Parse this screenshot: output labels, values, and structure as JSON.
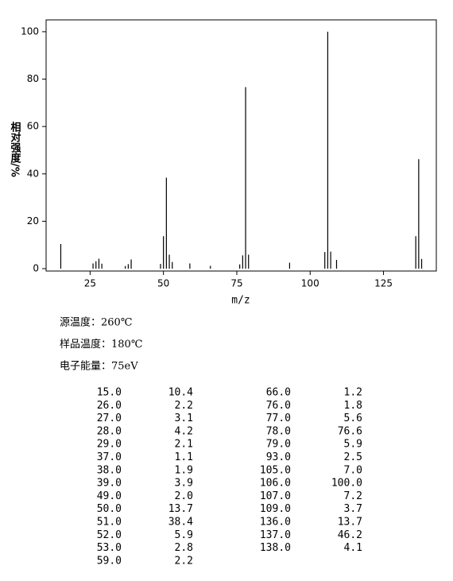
{
  "chart_data": {
    "type": "bar",
    "x_label": "m/z",
    "y_label": "相对强度/%",
    "x": [
      15,
      26,
      27,
      28,
      29,
      37,
      38,
      39,
      49,
      50,
      51,
      52,
      53,
      59,
      66,
      76,
      77,
      78,
      79,
      93,
      105,
      106,
      107,
      109,
      136,
      137,
      138
    ],
    "x_labels": [
      "15.0",
      "26.0",
      "27.0",
      "28.0",
      "29.0",
      "37.0",
      "38.0",
      "39.0",
      "49.0",
      "50.0",
      "51.0",
      "52.0",
      "53.0",
      "59.0",
      "66.0",
      "76.0",
      "77.0",
      "78.0",
      "79.0",
      "93.0",
      "105.0",
      "106.0",
      "107.0",
      "109.0",
      "136.0",
      "137.0",
      "138.0"
    ],
    "values": [
      10.4,
      2.2,
      3.1,
      4.2,
      2.1,
      1.1,
      1.9,
      3.9,
      2.0,
      13.7,
      38.4,
      5.9,
      2.8,
      2.2,
      1.2,
      1.8,
      5.6,
      76.6,
      5.9,
      2.5,
      7.0,
      100.0,
      7.2,
      3.7,
      13.7,
      46.2,
      4.1
    ],
    "value_labels": [
      "10.4",
      "2.2",
      "3.1",
      "4.2",
      "2.1",
      "1.1",
      "1.9",
      "3.9",
      "2.0",
      "13.7",
      "38.4",
      "5.9",
      "2.8",
      "2.2",
      "1.2",
      "1.8",
      "5.6",
      "76.6",
      "5.9",
      "2.5",
      "7.0",
      "100.0",
      "7.2",
      "3.7",
      "13.7",
      "46.2",
      "4.1"
    ],
    "color": "#000000",
    "xlim": [
      10,
      143
    ],
    "xticks": [
      25,
      50,
      75,
      100,
      125
    ],
    "ylim": [
      -1,
      105
    ],
    "yticks": [
      0,
      20,
      40,
      60,
      80,
      100
    ]
  },
  "info": [
    "源温度：260℃",
    "样品温度：180℃",
    "电子能量：75eV"
  ]
}
